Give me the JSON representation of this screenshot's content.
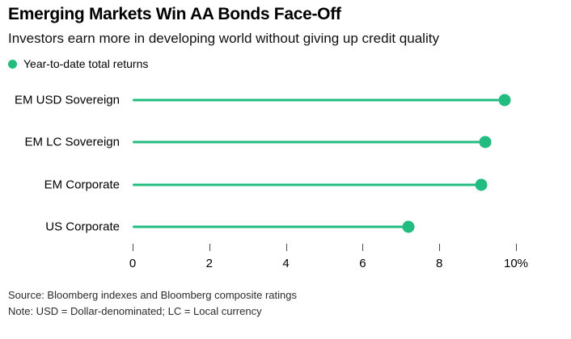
{
  "chart_data": {
    "type": "bar",
    "variant": "horizontal-lollipop",
    "title": "Emerging Markets Win AA Bonds Face-Off",
    "subtitle": "Investors earn more in developing world without giving up credit quality",
    "legend": [
      {
        "label": "Year-to-date total returns",
        "color": "#22bc80"
      }
    ],
    "categories": [
      "EM USD Sovereign",
      "EM LC Sovereign",
      "EM Corporate",
      "US Corporate"
    ],
    "values": [
      9.7,
      9.2,
      9.1,
      7.2
    ],
    "unit": "%",
    "xlim": [
      0,
      10
    ],
    "xticks": [
      0,
      2,
      4,
      6,
      8,
      10
    ],
    "xtick_labels": [
      "0",
      "2",
      "4",
      "6",
      "8",
      "10%"
    ],
    "grid": false,
    "legend_position": "top-left",
    "accent_color": "#22bc80",
    "source": "Source: Bloomberg indexes and Bloomberg composite ratings",
    "note": "Note: USD = Dollar-denominated; LC = Local currency"
  }
}
